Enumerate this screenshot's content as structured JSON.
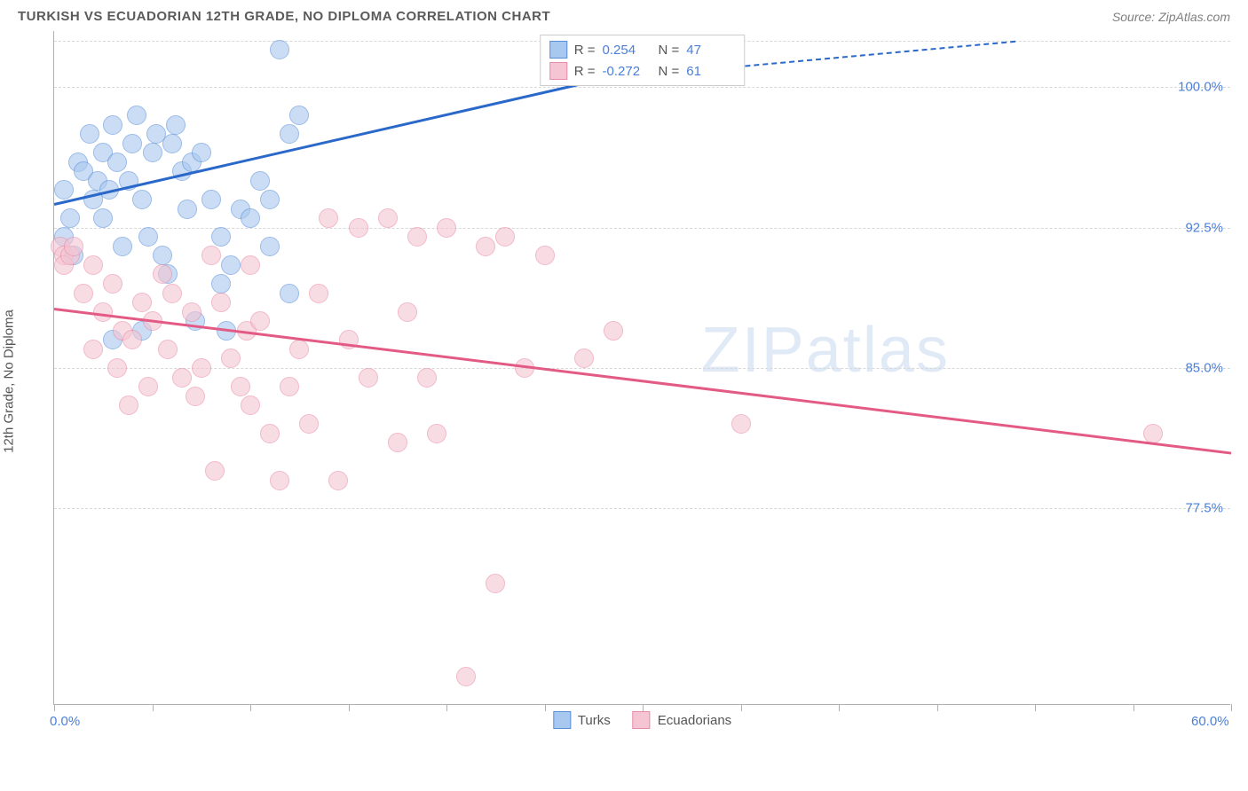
{
  "title": "TURKISH VS ECUADORIAN 12TH GRADE, NO DIPLOMA CORRELATION CHART",
  "source": "Source: ZipAtlas.com",
  "watermark": "ZIPatlas",
  "chart": {
    "type": "scatter",
    "ylabel": "12th Grade, No Diploma",
    "xlim": [
      0,
      60
    ],
    "ylim": [
      67,
      103
    ],
    "x_ticks": [
      0,
      5,
      10,
      15,
      20,
      25,
      30,
      35,
      40,
      45,
      50,
      55,
      60
    ],
    "x_labels": [
      {
        "val": 0,
        "text": "0.0%"
      },
      {
        "val": 60,
        "text": "60.0%"
      }
    ],
    "y_grid": [
      77.5,
      85.0,
      92.5,
      100.0,
      102.5
    ],
    "y_labels": [
      {
        "val": 77.5,
        "text": "77.5%"
      },
      {
        "val": 85.0,
        "text": "85.0%"
      },
      {
        "val": 92.5,
        "text": "92.5%"
      },
      {
        "val": 100.0,
        "text": "100.0%"
      }
    ],
    "background_color": "#ffffff",
    "grid_color": "#d8d8d8",
    "axis_color": "#b0b0b0",
    "point_radius": 11,
    "point_opacity": 0.6,
    "series": [
      {
        "name": "Turks",
        "fill": "#a8c8ef",
        "stroke": "#5a8fd8",
        "line_color": "#2a68c9",
        "r_value": "0.254",
        "n_value": "47",
        "trend": {
          "x1": 0,
          "y1": 93.8,
          "x2": 28,
          "y2": 100.5
        },
        "trend_ext": {
          "x1": 28,
          "y1": 100.5,
          "x2": 49,
          "y2": 102.5
        },
        "points": [
          [
            0.5,
            94.5
          ],
          [
            0.8,
            93.0
          ],
          [
            0.5,
            92.0
          ],
          [
            1.0,
            91.0
          ],
          [
            1.2,
            96.0
          ],
          [
            1.5,
            95.5
          ],
          [
            1.8,
            97.5
          ],
          [
            2.0,
            94.0
          ],
          [
            2.2,
            95.0
          ],
          [
            2.5,
            96.5
          ],
          [
            2.5,
            93.0
          ],
          [
            2.8,
            94.5
          ],
          [
            3.0,
            98.0
          ],
          [
            3.2,
            96.0
          ],
          [
            3.5,
            91.5
          ],
          [
            3.8,
            95.0
          ],
          [
            4.0,
            97.0
          ],
          [
            4.2,
            98.5
          ],
          [
            4.5,
            94.0
          ],
          [
            4.8,
            92.0
          ],
          [
            5.0,
            96.5
          ],
          [
            5.2,
            97.5
          ],
          [
            5.5,
            91.0
          ],
          [
            5.8,
            90.0
          ],
          [
            6.0,
            97.0
          ],
          [
            6.2,
            98.0
          ],
          [
            6.5,
            95.5
          ],
          [
            6.8,
            93.5
          ],
          [
            7.0,
            96.0
          ],
          [
            7.5,
            96.5
          ],
          [
            8.0,
            94.0
          ],
          [
            8.5,
            92.0
          ],
          [
            8.5,
            89.5
          ],
          [
            9.0,
            90.5
          ],
          [
            9.5,
            93.5
          ],
          [
            10.0,
            93.0
          ],
          [
            10.5,
            95.0
          ],
          [
            11.0,
            94.0
          ],
          [
            11.5,
            102.0
          ],
          [
            12.0,
            97.5
          ],
          [
            12.5,
            98.5
          ],
          [
            7.2,
            87.5
          ],
          [
            4.5,
            87.0
          ],
          [
            8.8,
            87.0
          ],
          [
            12.0,
            89.0
          ],
          [
            11.0,
            91.5
          ],
          [
            3.0,
            86.5
          ]
        ]
      },
      {
        "name": "Ecuadorians",
        "fill": "#f5c5d3",
        "stroke": "#e88ba8",
        "line_color": "#e35a85",
        "r_value": "-0.272",
        "n_value": "61",
        "trend": {
          "x1": 0,
          "y1": 88.2,
          "x2": 60,
          "y2": 80.5
        },
        "points": [
          [
            0.3,
            91.5
          ],
          [
            0.5,
            91.0
          ],
          [
            0.5,
            90.5
          ],
          [
            0.8,
            91.0
          ],
          [
            1.0,
            91.5
          ],
          [
            1.5,
            89.0
          ],
          [
            2.0,
            90.5
          ],
          [
            2.0,
            86.0
          ],
          [
            2.5,
            88.0
          ],
          [
            3.0,
            89.5
          ],
          [
            3.2,
            85.0
          ],
          [
            3.5,
            87.0
          ],
          [
            3.8,
            83.0
          ],
          [
            4.0,
            86.5
          ],
          [
            4.5,
            88.5
          ],
          [
            4.8,
            84.0
          ],
          [
            5.0,
            87.5
          ],
          [
            5.5,
            90.0
          ],
          [
            5.8,
            86.0
          ],
          [
            6.0,
            89.0
          ],
          [
            6.5,
            84.5
          ],
          [
            7.0,
            88.0
          ],
          [
            7.2,
            83.5
          ],
          [
            7.5,
            85.0
          ],
          [
            8.0,
            91.0
          ],
          [
            8.2,
            79.5
          ],
          [
            8.5,
            88.5
          ],
          [
            9.0,
            85.5
          ],
          [
            9.5,
            84.0
          ],
          [
            9.8,
            87.0
          ],
          [
            10.0,
            83.0
          ],
          [
            10.5,
            87.5
          ],
          [
            11.0,
            81.5
          ],
          [
            11.5,
            79.0
          ],
          [
            12.0,
            84.0
          ],
          [
            12.5,
            86.0
          ],
          [
            13.0,
            82.0
          ],
          [
            13.5,
            89.0
          ],
          [
            14.0,
            93.0
          ],
          [
            15.0,
            86.5
          ],
          [
            15.5,
            92.5
          ],
          [
            16.0,
            84.5
          ],
          [
            17.0,
            93.0
          ],
          [
            17.5,
            81.0
          ],
          [
            18.0,
            88.0
          ],
          [
            18.5,
            92.0
          ],
          [
            19.0,
            84.5
          ],
          [
            19.5,
            81.5
          ],
          [
            20.0,
            92.5
          ],
          [
            21.0,
            68.5
          ],
          [
            22.0,
            91.5
          ],
          [
            22.5,
            73.5
          ],
          [
            23.0,
            92.0
          ],
          [
            24.0,
            85.0
          ],
          [
            25.0,
            91.0
          ],
          [
            27.0,
            85.5
          ],
          [
            28.5,
            87.0
          ],
          [
            35.0,
            82.0
          ],
          [
            56.0,
            81.5
          ],
          [
            14.5,
            79.0
          ],
          [
            10.0,
            90.5
          ]
        ]
      }
    ],
    "bottom_legend": [
      {
        "label": "Turks",
        "fill": "#a8c8ef",
        "stroke": "#5a8fd8"
      },
      {
        "label": "Ecuadorians",
        "fill": "#f5c5d3",
        "stroke": "#e88ba8"
      }
    ],
    "stat_legend": {
      "r_label": "R =",
      "n_label": "N ="
    }
  }
}
